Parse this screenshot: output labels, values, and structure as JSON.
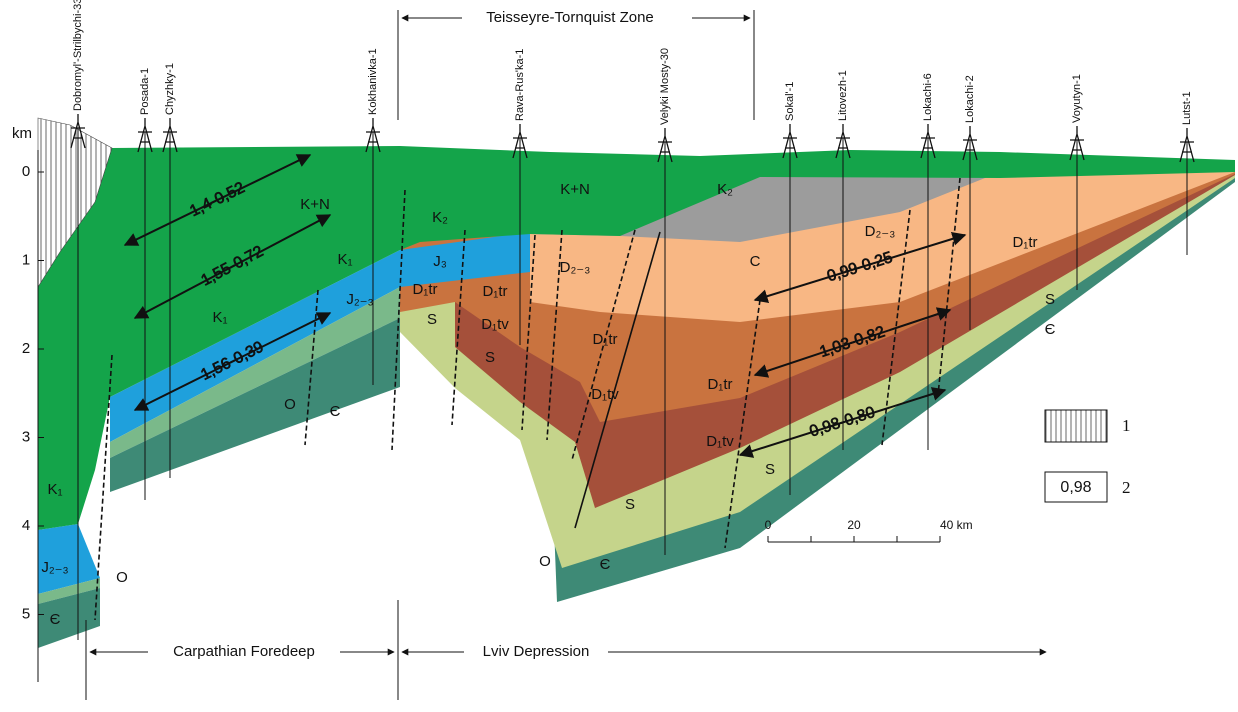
{
  "wells": [
    "Dobromyl'-Strilbychi-33",
    "Posada-1",
    "Chyzhky-1",
    "Kokhanivka-1",
    "Rava-Rus'ka-1",
    "Velyki Mosty-30",
    "Sokal'-1",
    "Litovezh-1",
    "Lokachi-6",
    "Lokachi-2",
    "Voyutyn-1",
    "Lutst-1"
  ],
  "depth_axis": {
    "unit": "km",
    "ticks": [
      "0",
      "1",
      "2",
      "3",
      "4",
      "5"
    ]
  },
  "zones": {
    "top": "Teisseyre-Tornquist Zone",
    "bottom": [
      "Carpathian Foredeep",
      "Lviv Depression"
    ]
  },
  "layers": [
    "K₁",
    "J₂₋₃",
    "Є",
    "O",
    "K₁",
    "K₁",
    "K+N",
    "J₂₋₃",
    "O",
    "Є",
    "K₂",
    "J₃",
    "D₁tr",
    "S",
    "D₁tr",
    "D₁tv",
    "S",
    "K+N",
    "K₂",
    "C",
    "D₂₋₃",
    "D₁tr",
    "D₁tv",
    "D₁tr",
    "D₁tv",
    "S",
    "O",
    "Є",
    "D₂₋₃",
    "D₁tr",
    "S",
    "Є",
    "S"
  ],
  "ratios": [
    "1,4-0,52",
    "1,55-0,72",
    "1,56-0,39",
    "0,99-0,25",
    "1,03-0,82",
    "0,98-0,80"
  ],
  "legend": [
    {
      "label": "1"
    },
    {
      "sample": "0,98",
      "label": "2"
    }
  ],
  "scale_bar": [
    "0",
    "20",
    "40 km"
  ]
}
